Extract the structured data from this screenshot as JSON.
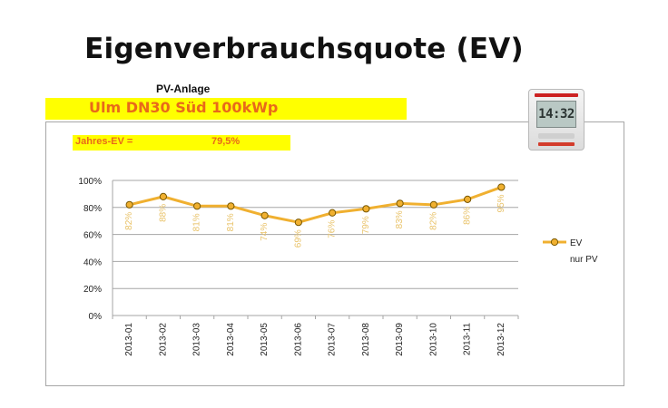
{
  "page": {
    "title": "Eigenverbrauchsquote (EV)",
    "subtitle": "PV-Anlage",
    "plant_name": "Ulm DN30 Süd 100kWp",
    "ev_label": "Jahres-EV =",
    "ev_value": "79,5%"
  },
  "device": {
    "display_text": "14:32",
    "icon": "monitoring-device-icon"
  },
  "colors": {
    "line": "#f0b030",
    "marker_fill": "#f0b030",
    "marker_stroke": "#7a5800",
    "data_label": "#e9c36a",
    "banner": "#ffff00",
    "banner_text": "#e8691a",
    "grid": "#a6a6a6"
  },
  "chart_data": {
    "type": "line",
    "categories": [
      "2013-01",
      "2013-02",
      "2013-03",
      "2013-04",
      "2013-05",
      "2013-06",
      "2013-07",
      "2013-08",
      "2013-09",
      "2013-10",
      "2013-11",
      "2013-12"
    ],
    "series": [
      {
        "name": "EV",
        "values": [
          82,
          88,
          81,
          81,
          74,
          69,
          76,
          79,
          83,
          82,
          86,
          95
        ],
        "labels": [
          "82%",
          "88%",
          "81%",
          "81%",
          "74%",
          "69%",
          "76%",
          "79%",
          "83%",
          "82%",
          "86%",
          "95%"
        ]
      }
    ],
    "legend": [
      "EV",
      "nur PV"
    ],
    "legend_position": "right",
    "y_ticks": [
      "0%",
      "20%",
      "40%",
      "60%",
      "80%",
      "100%"
    ],
    "ylim": [
      0,
      100
    ],
    "grid": true,
    "xlabel": "",
    "ylabel": ""
  }
}
